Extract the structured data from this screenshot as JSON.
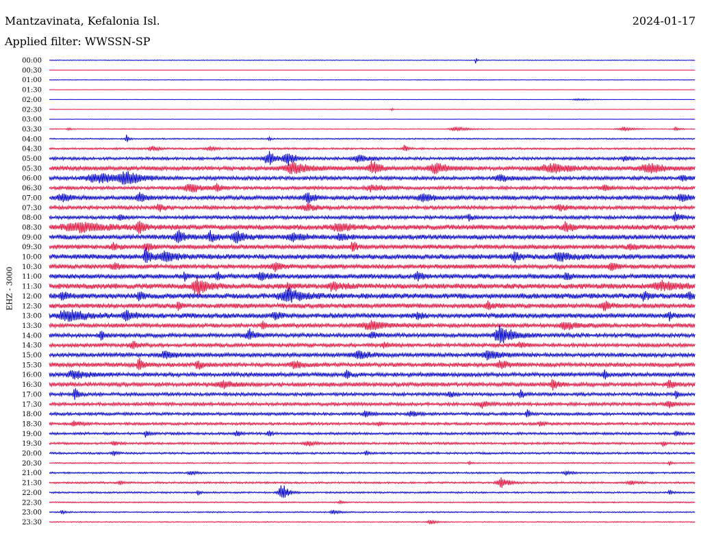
{
  "header": {
    "station": "Mantzavinata, Kefalonia Isl.",
    "filter": "Applied filter: WWSSN-SP",
    "date": "2024-01-17"
  },
  "channel_label": "EHZ - 3000",
  "colors": {
    "odd": "#0000d0",
    "even": "#e8103c"
  },
  "chart_data": {
    "type": "line",
    "title": "Mantzavinata, Kefalonia Isl.",
    "subtitle": "Applied filter: WWSSN-SP",
    "ylabel": "EHZ - 3000",
    "rows": [
      {
        "label": "00:00",
        "noise": 0.3,
        "events": [
          {
            "x": 0.66,
            "amp": 6,
            "w": 0.002
          }
        ]
      },
      {
        "label": "00:30",
        "noise": 0.2,
        "events": []
      },
      {
        "label": "01:00",
        "noise": 0.3,
        "events": []
      },
      {
        "label": "01:30",
        "noise": 0.2,
        "events": []
      },
      {
        "label": "02:00",
        "noise": 0.2,
        "events": [
          {
            "x": 0.82,
            "amp": 1.5,
            "w": 0.02
          }
        ]
      },
      {
        "label": "02:30",
        "noise": 0.2,
        "events": [
          {
            "x": 0.53,
            "amp": 2,
            "w": 0.003
          }
        ]
      },
      {
        "label": "03:00",
        "noise": 0.2,
        "events": []
      },
      {
        "label": "03:30",
        "noise": 0.4,
        "events": [
          {
            "x": 0.03,
            "amp": 2,
            "w": 0.005
          },
          {
            "x": 0.63,
            "amp": 3,
            "w": 0.02
          },
          {
            "x": 0.89,
            "amp": 3,
            "w": 0.015
          },
          {
            "x": 0.97,
            "amp": 4,
            "w": 0.005
          }
        ]
      },
      {
        "label": "04:00",
        "noise": 0.6,
        "events": [
          {
            "x": 0.12,
            "amp": 6,
            "w": 0.004
          },
          {
            "x": 0.34,
            "amp": 4,
            "w": 0.003
          }
        ]
      },
      {
        "label": "04:30",
        "noise": 0.9,
        "events": [
          {
            "x": 0.16,
            "amp": 4,
            "w": 0.01
          },
          {
            "x": 0.25,
            "amp": 3,
            "w": 0.01
          },
          {
            "x": 0.55,
            "amp": 6,
            "w": 0.005
          }
        ]
      },
      {
        "label": "05:00",
        "noise": 1.4,
        "events": [
          {
            "x": 0.34,
            "amp": 10,
            "w": 0.015
          },
          {
            "x": 0.37,
            "amp": 9,
            "w": 0.012
          },
          {
            "x": 0.48,
            "amp": 5,
            "w": 0.02
          },
          {
            "x": 0.89,
            "amp": 4,
            "w": 0.01
          }
        ]
      },
      {
        "label": "05:30",
        "noise": 2.0,
        "events": [
          {
            "x": 0.38,
            "amp": 8,
            "w": 0.03
          },
          {
            "x": 0.5,
            "amp": 11,
            "w": 0.012
          },
          {
            "x": 0.6,
            "amp": 7,
            "w": 0.025
          },
          {
            "x": 0.78,
            "amp": 6,
            "w": 0.04
          },
          {
            "x": 0.93,
            "amp": 6,
            "w": 0.03
          }
        ]
      },
      {
        "label": "06:00",
        "noise": 1.8,
        "events": [
          {
            "x": 0.08,
            "amp": 7,
            "w": 0.04
          },
          {
            "x": 0.12,
            "amp": 10,
            "w": 0.02
          },
          {
            "x": 0.7,
            "amp": 4,
            "w": 0.02
          },
          {
            "x": 0.98,
            "amp": 4,
            "w": 0.01
          }
        ]
      },
      {
        "label": "06:30",
        "noise": 1.6,
        "events": [
          {
            "x": 0.22,
            "amp": 6,
            "w": 0.02
          },
          {
            "x": 0.26,
            "amp": 5,
            "w": 0.01
          },
          {
            "x": 0.5,
            "amp": 5,
            "w": 0.02
          },
          {
            "x": 0.86,
            "amp": 5,
            "w": 0.01
          }
        ]
      },
      {
        "label": "07:00",
        "noise": 2.0,
        "events": [
          {
            "x": 0.02,
            "amp": 6,
            "w": 0.015
          },
          {
            "x": 0.14,
            "amp": 7,
            "w": 0.01
          },
          {
            "x": 0.4,
            "amp": 6,
            "w": 0.015
          },
          {
            "x": 0.58,
            "amp": 5,
            "w": 0.02
          },
          {
            "x": 0.98,
            "amp": 5,
            "w": 0.015
          }
        ]
      },
      {
        "label": "07:30",
        "noise": 1.8,
        "events": [
          {
            "x": 0.17,
            "amp": 7,
            "w": 0.008
          },
          {
            "x": 0.4,
            "amp": 5,
            "w": 0.015
          },
          {
            "x": 0.79,
            "amp": 5,
            "w": 0.015
          }
        ]
      },
      {
        "label": "08:00",
        "noise": 1.7,
        "events": [
          {
            "x": 0.11,
            "amp": 5,
            "w": 0.006
          },
          {
            "x": 0.65,
            "amp": 5,
            "w": 0.006
          },
          {
            "x": 0.97,
            "amp": 7,
            "w": 0.01
          }
        ]
      },
      {
        "label": "08:30",
        "noise": 2.5,
        "events": [
          {
            "x": 0.05,
            "amp": 6,
            "w": 0.05
          },
          {
            "x": 0.14,
            "amp": 9,
            "w": 0.008
          },
          {
            "x": 0.45,
            "amp": 6,
            "w": 0.02
          },
          {
            "x": 0.8,
            "amp": 8,
            "w": 0.01
          }
        ]
      },
      {
        "label": "09:00",
        "noise": 2.3,
        "events": [
          {
            "x": 0.2,
            "amp": 10,
            "w": 0.01
          },
          {
            "x": 0.25,
            "amp": 7,
            "w": 0.012
          },
          {
            "x": 0.29,
            "amp": 8,
            "w": 0.015
          },
          {
            "x": 0.38,
            "amp": 5,
            "w": 0.02
          },
          {
            "x": 0.45,
            "amp": 5,
            "w": 0.015
          }
        ]
      },
      {
        "label": "09:30",
        "noise": 2.2,
        "events": [
          {
            "x": 0.1,
            "amp": 6,
            "w": 0.008
          },
          {
            "x": 0.15,
            "amp": 7,
            "w": 0.008
          },
          {
            "x": 0.47,
            "amp": 8,
            "w": 0.006
          },
          {
            "x": 0.9,
            "amp": 5,
            "w": 0.01
          }
        ]
      },
      {
        "label": "10:00",
        "noise": 2.5,
        "events": [
          {
            "x": 0.15,
            "amp": 12,
            "w": 0.008
          },
          {
            "x": 0.18,
            "amp": 7,
            "w": 0.02
          },
          {
            "x": 0.72,
            "amp": 8,
            "w": 0.008
          },
          {
            "x": 0.79,
            "amp": 6,
            "w": 0.02
          }
        ]
      },
      {
        "label": "10:30",
        "noise": 2.2,
        "events": [
          {
            "x": 0.1,
            "amp": 5,
            "w": 0.01
          },
          {
            "x": 0.35,
            "amp": 6,
            "w": 0.01
          },
          {
            "x": 0.87,
            "amp": 7,
            "w": 0.008
          }
        ]
      },
      {
        "label": "11:00",
        "noise": 2.3,
        "events": [
          {
            "x": 0.21,
            "amp": 7,
            "w": 0.005
          },
          {
            "x": 0.26,
            "amp": 8,
            "w": 0.005
          },
          {
            "x": 0.33,
            "amp": 5,
            "w": 0.015
          },
          {
            "x": 0.57,
            "amp": 5,
            "w": 0.01
          },
          {
            "x": 0.8,
            "amp": 5,
            "w": 0.01
          }
        ]
      },
      {
        "label": "11:30",
        "noise": 2.6,
        "events": [
          {
            "x": 0.23,
            "amp": 14,
            "w": 0.015
          },
          {
            "x": 0.37,
            "amp": 6,
            "w": 0.006
          },
          {
            "x": 0.44,
            "amp": 5,
            "w": 0.02
          },
          {
            "x": 0.95,
            "amp": 6,
            "w": 0.03
          }
        ]
      },
      {
        "label": "12:00",
        "noise": 2.6,
        "events": [
          {
            "x": 0.02,
            "amp": 6,
            "w": 0.008
          },
          {
            "x": 0.14,
            "amp": 6,
            "w": 0.008
          },
          {
            "x": 0.37,
            "amp": 10,
            "w": 0.025
          },
          {
            "x": 0.92,
            "amp": 6,
            "w": 0.008
          },
          {
            "x": 0.99,
            "amp": 6,
            "w": 0.006
          }
        ]
      },
      {
        "label": "12:30",
        "noise": 2.3,
        "events": [
          {
            "x": 0.2,
            "amp": 7,
            "w": 0.005
          },
          {
            "x": 0.68,
            "amp": 5,
            "w": 0.01
          },
          {
            "x": 0.86,
            "amp": 6,
            "w": 0.01
          }
        ]
      },
      {
        "label": "13:00",
        "noise": 2.4,
        "events": [
          {
            "x": 0.03,
            "amp": 8,
            "w": 0.03
          },
          {
            "x": 0.12,
            "amp": 6,
            "w": 0.015
          },
          {
            "x": 0.35,
            "amp": 5,
            "w": 0.01
          },
          {
            "x": 0.57,
            "amp": 7,
            "w": 0.006
          },
          {
            "x": 0.96,
            "amp": 6,
            "w": 0.005
          }
        ]
      },
      {
        "label": "13:30",
        "noise": 2.0,
        "events": [
          {
            "x": 0.33,
            "amp": 6,
            "w": 0.005
          },
          {
            "x": 0.5,
            "amp": 6,
            "w": 0.03
          },
          {
            "x": 0.8,
            "amp": 5,
            "w": 0.02
          }
        ]
      },
      {
        "label": "14:00",
        "noise": 2.0,
        "events": [
          {
            "x": 0.08,
            "amp": 7,
            "w": 0.006
          },
          {
            "x": 0.31,
            "amp": 8,
            "w": 0.01
          },
          {
            "x": 0.5,
            "amp": 5,
            "w": 0.01
          },
          {
            "x": 0.7,
            "amp": 14,
            "w": 0.02
          }
        ]
      },
      {
        "label": "14:30",
        "noise": 1.8,
        "events": [
          {
            "x": 0.13,
            "amp": 5,
            "w": 0.01
          },
          {
            "x": 0.52,
            "amp": 5,
            "w": 0.01
          },
          {
            "x": 0.73,
            "amp": 5,
            "w": 0.01
          }
        ]
      },
      {
        "label": "15:00",
        "noise": 2.0,
        "events": [
          {
            "x": 0.18,
            "amp": 5,
            "w": 0.02
          },
          {
            "x": 0.48,
            "amp": 5,
            "w": 0.02
          },
          {
            "x": 0.68,
            "amp": 6,
            "w": 0.02
          }
        ]
      },
      {
        "label": "15:30",
        "noise": 2.0,
        "events": [
          {
            "x": 0.14,
            "amp": 9,
            "w": 0.008
          },
          {
            "x": 0.23,
            "amp": 7,
            "w": 0.008
          },
          {
            "x": 0.38,
            "amp": 5,
            "w": 0.015
          },
          {
            "x": 0.7,
            "amp": 5,
            "w": 0.015
          }
        ]
      },
      {
        "label": "16:00",
        "noise": 2.0,
        "events": [
          {
            "x": 0.04,
            "amp": 6,
            "w": 0.02
          },
          {
            "x": 0.46,
            "amp": 6,
            "w": 0.006
          },
          {
            "x": 0.86,
            "amp": 6,
            "w": 0.006
          }
        ]
      },
      {
        "label": "16:30",
        "noise": 2.0,
        "events": [
          {
            "x": 0.27,
            "amp": 5,
            "w": 0.02
          },
          {
            "x": 0.78,
            "amp": 7,
            "w": 0.008
          },
          {
            "x": 0.96,
            "amp": 5,
            "w": 0.01
          }
        ]
      },
      {
        "label": "17:00",
        "noise": 1.6,
        "events": [
          {
            "x": 0.04,
            "amp": 10,
            "w": 0.006
          },
          {
            "x": 0.62,
            "amp": 6,
            "w": 0.006
          },
          {
            "x": 0.73,
            "amp": 6,
            "w": 0.006
          },
          {
            "x": 0.97,
            "amp": 5,
            "w": 0.005
          }
        ]
      },
      {
        "label": "17:30",
        "noise": 1.6,
        "events": [
          {
            "x": 0.67,
            "amp": 5,
            "w": 0.01
          },
          {
            "x": 0.96,
            "amp": 5,
            "w": 0.01
          }
        ]
      },
      {
        "label": "18:00",
        "noise": 1.4,
        "events": [
          {
            "x": 0.49,
            "amp": 5,
            "w": 0.008
          },
          {
            "x": 0.56,
            "amp": 5,
            "w": 0.008
          },
          {
            "x": 0.74,
            "amp": 6,
            "w": 0.005
          }
        ]
      },
      {
        "label": "18:30",
        "noise": 1.3,
        "events": [
          {
            "x": 0.04,
            "amp": 4,
            "w": 0.01
          },
          {
            "x": 0.51,
            "amp": 5,
            "w": 0.005
          },
          {
            "x": 0.76,
            "amp": 5,
            "w": 0.005
          }
        ]
      },
      {
        "label": "19:00",
        "noise": 1.2,
        "events": [
          {
            "x": 0.15,
            "amp": 6,
            "w": 0.005
          },
          {
            "x": 0.29,
            "amp": 5,
            "w": 0.006
          },
          {
            "x": 0.34,
            "amp": 5,
            "w": 0.005
          },
          {
            "x": 0.97,
            "amp": 5,
            "w": 0.005
          }
        ]
      },
      {
        "label": "19:30",
        "noise": 1.1,
        "events": [
          {
            "x": 0.1,
            "amp": 4,
            "w": 0.006
          },
          {
            "x": 0.4,
            "amp": 4,
            "w": 0.01
          },
          {
            "x": 0.95,
            "amp": 4,
            "w": 0.005
          }
        ]
      },
      {
        "label": "20:00",
        "noise": 1.0,
        "events": [
          {
            "x": 0.1,
            "amp": 4,
            "w": 0.005
          },
          {
            "x": 0.49,
            "amp": 4,
            "w": 0.004
          }
        ]
      },
      {
        "label": "20:30",
        "noise": 0.6,
        "events": [
          {
            "x": 0.65,
            "amp": 3,
            "w": 0.004
          },
          {
            "x": 0.96,
            "amp": 3,
            "w": 0.004
          }
        ]
      },
      {
        "label": "21:00",
        "noise": 0.8,
        "events": [
          {
            "x": 0.22,
            "amp": 3,
            "w": 0.01
          },
          {
            "x": 0.8,
            "amp": 3,
            "w": 0.01
          }
        ]
      },
      {
        "label": "21:30",
        "noise": 0.9,
        "events": [
          {
            "x": 0.11,
            "amp": 3,
            "w": 0.006
          },
          {
            "x": 0.7,
            "amp": 9,
            "w": 0.012
          },
          {
            "x": 0.9,
            "amp": 3,
            "w": 0.01
          }
        ]
      },
      {
        "label": "22:00",
        "noise": 0.8,
        "events": [
          {
            "x": 0.23,
            "amp": 4,
            "w": 0.004
          },
          {
            "x": 0.36,
            "amp": 14,
            "w": 0.01
          },
          {
            "x": 0.96,
            "amp": 4,
            "w": 0.004
          }
        ]
      },
      {
        "label": "22:30",
        "noise": 0.6,
        "events": [
          {
            "x": 0.45,
            "amp": 3,
            "w": 0.005
          }
        ]
      },
      {
        "label": "23:00",
        "noise": 0.6,
        "events": [
          {
            "x": 0.02,
            "amp": 3,
            "w": 0.005
          },
          {
            "x": 0.44,
            "amp": 3,
            "w": 0.01
          }
        ]
      },
      {
        "label": "23:30",
        "noise": 0.5,
        "events": [
          {
            "x": 0.59,
            "amp": 3,
            "w": 0.01
          }
        ]
      }
    ]
  }
}
